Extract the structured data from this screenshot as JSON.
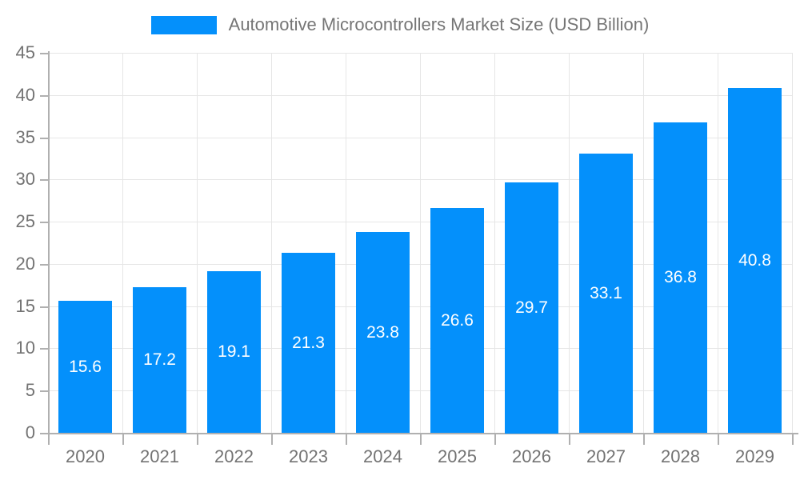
{
  "chart_data": {
    "type": "bar",
    "title": "Automotive Microcontrollers Market Size (USD Billion)",
    "legend": [
      {
        "label": "Automotive Microcontrollers Market Size (USD Billion)",
        "color": "#0490fb"
      }
    ],
    "legend_position": "top",
    "categories": [
      "2020",
      "2021",
      "2022",
      "2023",
      "2024",
      "2025",
      "2026",
      "2027",
      "2028",
      "2029"
    ],
    "values": [
      15.6,
      17.2,
      19.1,
      21.3,
      23.8,
      26.6,
      29.7,
      33.1,
      36.8,
      40.8
    ],
    "bar_labels": [
      "15.6",
      "17.2",
      "19.1",
      "21.3",
      "23.8",
      "26.6",
      "29.7",
      "33.1",
      "36.8",
      "40.8"
    ],
    "xlabel": "",
    "ylabel": "",
    "ylim": [
      0,
      45
    ],
    "yticks": [
      0,
      5,
      10,
      15,
      20,
      25,
      30,
      35,
      40,
      45
    ],
    "grid": true,
    "colors": {
      "bar": "#0490fb",
      "bar_label": "#ffffff",
      "axis_text": "#737373",
      "legend_text": "#757575",
      "grid_line": "#e6e6e6",
      "axis_line": "#b0b0b0",
      "background": "#ffffff"
    }
  }
}
